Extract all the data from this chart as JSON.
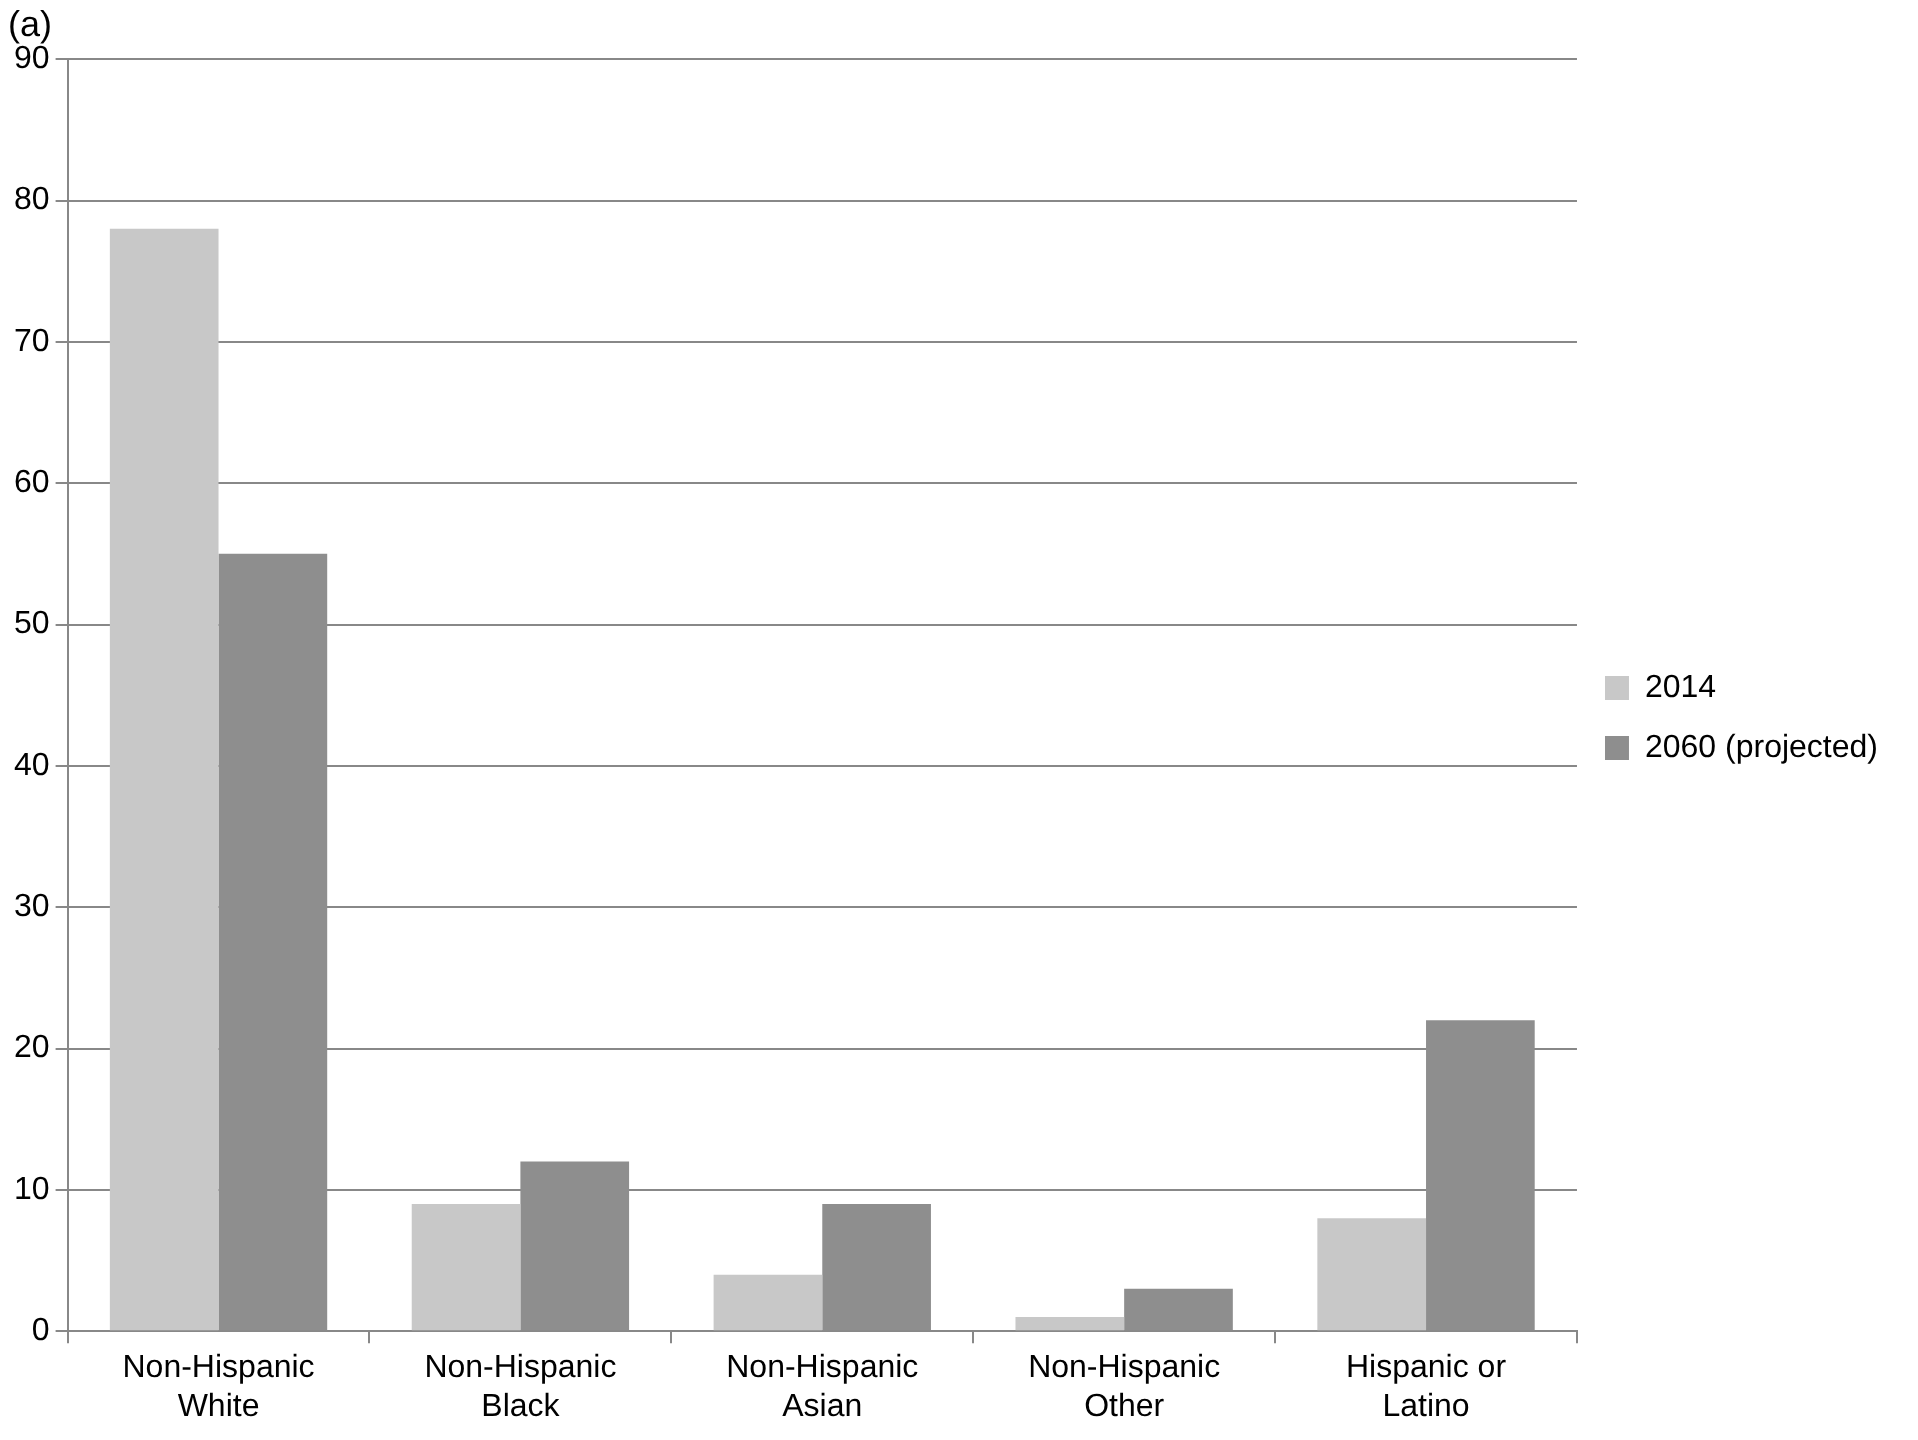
{
  "chart_data": {
    "type": "bar",
    "title": "(a)",
    "categories": [
      "Non-Hispanic White",
      "Non-Hispanic Black",
      "Non-Hispanic Asian",
      "Non-Hispanic Other",
      "Hispanic or Latino"
    ],
    "series": [
      {
        "name": "2014",
        "color": "#c8c8c8",
        "values": [
          78,
          9,
          4,
          1,
          8
        ]
      },
      {
        "name": "2060 (projected)",
        "color": "#8e8e8e",
        "values": [
          55,
          12,
          9,
          3,
          22
        ]
      }
    ],
    "ylim": [
      0,
      90
    ],
    "yticks": [
      0,
      10,
      20,
      30,
      40,
      50,
      60,
      70,
      80,
      90
    ],
    "grid": "y",
    "legend": "right"
  }
}
